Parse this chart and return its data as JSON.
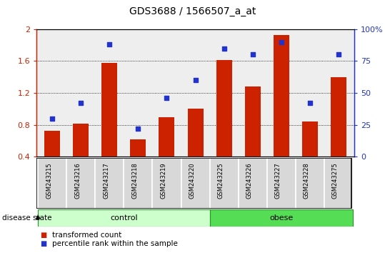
{
  "title": "GDS3688 / 1566507_a_at",
  "samples": [
    "GSM243215",
    "GSM243216",
    "GSM243217",
    "GSM243218",
    "GSM243219",
    "GSM243220",
    "GSM243225",
    "GSM243226",
    "GSM243227",
    "GSM243228",
    "GSM243275"
  ],
  "bar_values": [
    0.73,
    0.82,
    1.58,
    0.62,
    0.9,
    1.0,
    1.61,
    1.28,
    1.93,
    0.84,
    1.4
  ],
  "dot_values": [
    30,
    42,
    88,
    22,
    46,
    60,
    85,
    80,
    90,
    42,
    80
  ],
  "bar_color": "#cc2200",
  "dot_color": "#2233cc",
  "ylim_left": [
    0.4,
    2.0
  ],
  "ylim_right": [
    0,
    100
  ],
  "yticks_left": [
    0.4,
    0.8,
    1.2,
    1.6,
    2.0
  ],
  "ytick_labels_left": [
    "0.4",
    "0.8",
    "1.2",
    "1.6",
    "2"
  ],
  "yticks_right": [
    0,
    25,
    50,
    75,
    100
  ],
  "ytick_labels_right": [
    "0",
    "25",
    "50",
    "75",
    "100%"
  ],
  "groups": [
    {
      "label": "control",
      "start": 0,
      "end": 5,
      "color": "#ccffcc"
    },
    {
      "label": "obese",
      "start": 6,
      "end": 10,
      "color": "#55dd55"
    }
  ],
  "group_label_prefix": "disease state",
  "legend_bar_label": "transformed count",
  "legend_dot_label": "percentile rank within the sample",
  "bar_width": 0.55,
  "plot_bg": "#e8e8e8",
  "grid_color": "#000000",
  "axis_left_color": "#cc2200",
  "axis_right_color": "#2233cc",
  "grid_yticks": [
    0.8,
    1.2,
    1.6
  ]
}
